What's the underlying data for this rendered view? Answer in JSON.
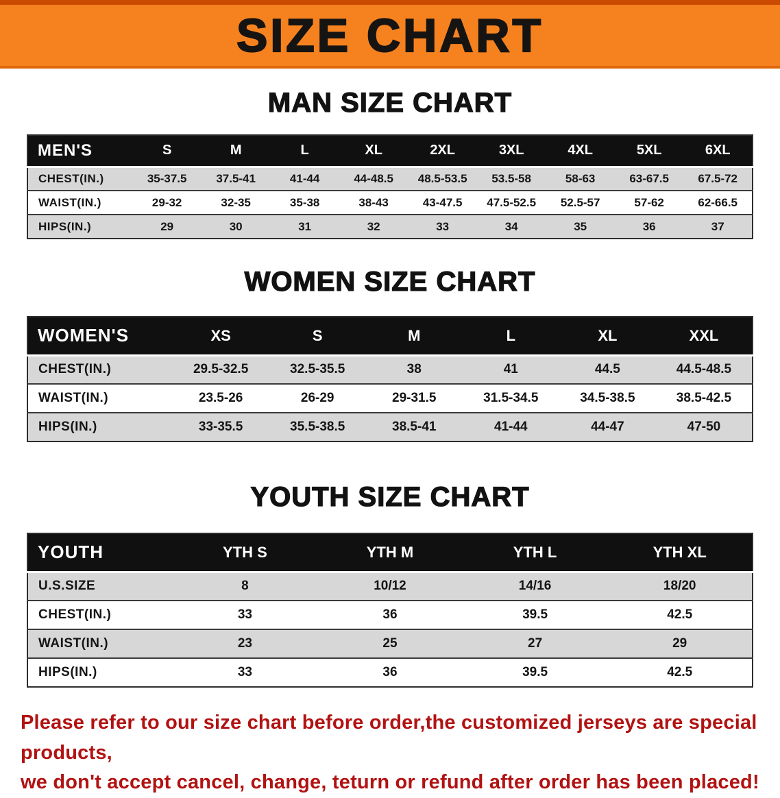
{
  "banner": {
    "title": "SIZE CHART"
  },
  "sections": [
    {
      "id": "men",
      "heading": "MAN SIZE CHART",
      "table": {
        "header": [
          "MEN'S",
          "S",
          "M",
          "L",
          "XL",
          "2XL",
          "3XL",
          "4XL",
          "5XL",
          "6XL"
        ],
        "rows": [
          {
            "label": "CHEST(IN.)",
            "values": [
              "35-37.5",
              "37.5-41",
              "41-44",
              "44-48.5",
              "48.5-53.5",
              "53.5-58",
              "58-63",
              "63-67.5",
              "67.5-72"
            ]
          },
          {
            "label": "WAIST(IN.)",
            "values": [
              "29-32",
              "32-35",
              "35-38",
              "38-43",
              "43-47.5",
              "47.5-52.5",
              "52.5-57",
              "57-62",
              "62-66.5"
            ]
          },
          {
            "label": "HIPS(IN.)",
            "values": [
              "29",
              "30",
              "31",
              "32",
              "33",
              "34",
              "35",
              "36",
              "37"
            ]
          }
        ]
      }
    },
    {
      "id": "women",
      "heading": "WOMEN SIZE CHART",
      "table": {
        "header": [
          "WOMEN'S",
          "XS",
          "S",
          "M",
          "L",
          "XL",
          "XXL"
        ],
        "rows": [
          {
            "label": "CHEST(IN.)",
            "values": [
              "29.5-32.5",
              "32.5-35.5",
              "38",
              "41",
              "44.5",
              "44.5-48.5"
            ]
          },
          {
            "label": "WAIST(IN.)",
            "values": [
              "23.5-26",
              "26-29",
              "29-31.5",
              "31.5-34.5",
              "34.5-38.5",
              "38.5-42.5"
            ]
          },
          {
            "label": "HIPS(IN.)",
            "values": [
              "33-35.5",
              "35.5-38.5",
              "38.5-41",
              "41-44",
              "44-47",
              "47-50"
            ]
          }
        ]
      }
    },
    {
      "id": "youth",
      "heading": "YOUTH SIZE CHART",
      "table": {
        "header": [
          "YOUTH",
          "YTH S",
          "YTH M",
          "YTH L",
          "YTH XL"
        ],
        "rows": [
          {
            "label": "U.S.SIZE",
            "values": [
              "8",
              "10/12",
              "14/16",
              "18/20"
            ]
          },
          {
            "label": "CHEST(IN.)",
            "values": [
              "33",
              "36",
              "39.5",
              "42.5"
            ]
          },
          {
            "label": "WAIST(IN.)",
            "values": [
              "23",
              "25",
              "27",
              "29"
            ]
          },
          {
            "label": "HIPS(IN.)",
            "values": [
              "33",
              "36",
              "39.5",
              "42.5"
            ]
          }
        ]
      }
    }
  ],
  "disclaimer": {
    "lines": [
      "Please refer to our size chart before order,the customized jerseys are special products,",
      "we don't accept cancel, change, teturn or refund after order has been placed!"
    ]
  },
  "colors": {
    "banner_bg": "#f6821f",
    "banner_text": "#161412",
    "table_header_bg": "#101010",
    "table_header_text": "#ffffff",
    "row_alt_bg": "#d7d7d7",
    "disclaimer_text": "#b21212"
  }
}
